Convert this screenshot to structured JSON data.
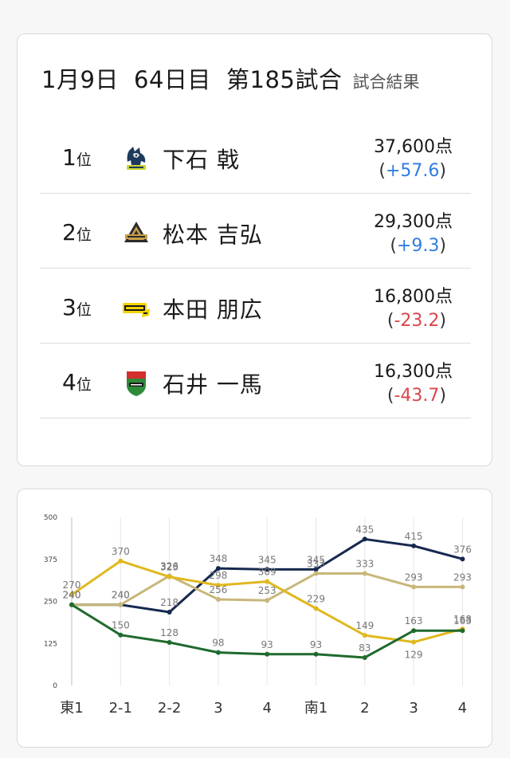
{
  "header": {
    "date": "1月9日",
    "day": "64日目",
    "match": "第185試合",
    "label": "試合結果"
  },
  "rank_unit": "位",
  "ranking": [
    {
      "rank": "1",
      "team_icon": "mascot-team-logo-icon",
      "player": "下石 戟",
      "score": "37,600点",
      "delta": "+57.6",
      "delta_sign": "pos"
    },
    {
      "rank": "2",
      "team_icon": "triangle-team-logo-icon",
      "player": "松本 吉弘",
      "score": "29,300点",
      "delta": "+9.3",
      "delta_sign": "pos"
    },
    {
      "rank": "3",
      "team_icon": "raiden-team-logo-icon",
      "player": "本田 朋広",
      "score": "16,800点",
      "delta": "-23.2",
      "delta_sign": "neg"
    },
    {
      "rank": "4",
      "team_icon": "shield-team-logo-icon",
      "player": "石井 一馬",
      "score": "16,300点",
      "delta": "-43.7",
      "delta_sign": "neg"
    }
  ],
  "chart_data": {
    "type": "line",
    "categories": [
      "東1",
      "2-1",
      "2-2",
      "3",
      "4",
      "南1",
      "2",
      "3",
      "4"
    ],
    "ylim": [
      0,
      500
    ],
    "yticks": [
      0,
      125,
      250,
      375,
      500
    ],
    "grid": "vertical",
    "legend": "none",
    "series": [
      {
        "color": "#16294e",
        "values": [
          240,
          240,
          218,
          348,
          345,
          345,
          435,
          415,
          376
        ]
      },
      {
        "color": "#c8b77a",
        "values": [
          240,
          240,
          326,
          256,
          253,
          333,
          333,
          293,
          293
        ]
      },
      {
        "color": "#e0b81f",
        "values": [
          270,
          370,
          323,
          298,
          309,
          229,
          149,
          129,
          168
        ]
      },
      {
        "color": "#1f6a2e",
        "values": [
          240,
          150,
          128,
          98,
          93,
          93,
          83,
          163,
          163
        ]
      }
    ],
    "labels": [
      {
        "x": 0,
        "y": 240,
        "text": "240",
        "dy": -8
      },
      {
        "x": 0,
        "y": 240,
        "text": "240",
        "dy": -8
      },
      {
        "x": 0,
        "y": 270,
        "text": "270",
        "dy": -8
      },
      {
        "x": 1,
        "y": 370,
        "text": "370",
        "dy": -8
      },
      {
        "x": 1,
        "y": 240,
        "text": "240",
        "dy": -8
      },
      {
        "x": 1,
        "y": 240,
        "text": "240",
        "dy": -8
      },
      {
        "x": 1,
        "y": 150,
        "text": "150",
        "dy": -8
      },
      {
        "x": 2,
        "y": 326,
        "text": "326",
        "dy": -8
      },
      {
        "x": 2,
        "y": 323,
        "text": "323",
        "dy": -8
      },
      {
        "x": 2,
        "y": 218,
        "text": "218",
        "dy": -8
      },
      {
        "x": 2,
        "y": 128,
        "text": "128",
        "dy": -8
      },
      {
        "x": 3,
        "y": 348,
        "text": "348",
        "dy": -8
      },
      {
        "x": 3,
        "y": 298,
        "text": "298",
        "dy": -8
      },
      {
        "x": 3,
        "y": 256,
        "text": "256",
        "dy": -8
      },
      {
        "x": 3,
        "y": 98,
        "text": "98",
        "dy": -8
      },
      {
        "x": 4,
        "y": 345,
        "text": "345",
        "dy": -8
      },
      {
        "x": 4,
        "y": 309,
        "text": "309",
        "dy": -8
      },
      {
        "x": 4,
        "y": 253,
        "text": "253",
        "dy": -8
      },
      {
        "x": 4,
        "y": 93,
        "text": "93",
        "dy": -8
      },
      {
        "x": 5,
        "y": 345,
        "text": "345",
        "dy": -8
      },
      {
        "x": 5,
        "y": 333,
        "text": "333",
        "dy": -8
      },
      {
        "x": 5,
        "y": 229,
        "text": "229",
        "dy": -8
      },
      {
        "x": 5,
        "y": 93,
        "text": "93",
        "dy": -8
      },
      {
        "x": 6,
        "y": 435,
        "text": "435",
        "dy": -8
      },
      {
        "x": 6,
        "y": 333,
        "text": "333",
        "dy": -8
      },
      {
        "x": 6,
        "y": 149,
        "text": "149",
        "dy": -8
      },
      {
        "x": 6,
        "y": 83,
        "text": "83",
        "dy": -8
      },
      {
        "x": 7,
        "y": 415,
        "text": "415",
        "dy": -8
      },
      {
        "x": 7,
        "y": 293,
        "text": "293",
        "dy": -8
      },
      {
        "x": 7,
        "y": 163,
        "text": "163",
        "dy": -8
      },
      {
        "x": 7,
        "y": 129,
        "text": "129",
        "dy": 20
      },
      {
        "x": 8,
        "y": 376,
        "text": "376",
        "dy": -8
      },
      {
        "x": 8,
        "y": 293,
        "text": "293",
        "dy": -8
      },
      {
        "x": 8,
        "y": 168,
        "text": "168",
        "dy": -8
      },
      {
        "x": 8,
        "y": 163,
        "text": "163",
        "dy": -8
      }
    ]
  }
}
